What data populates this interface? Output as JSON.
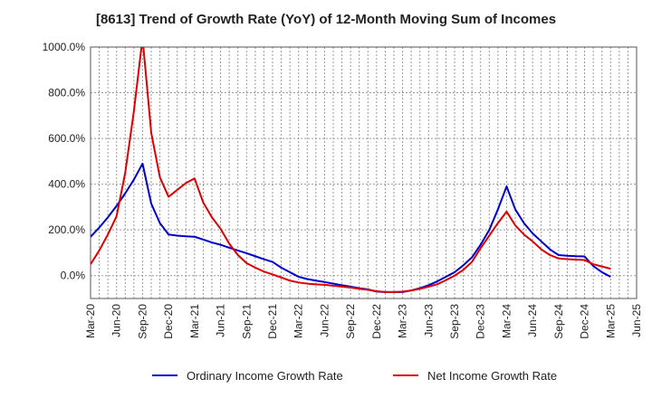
{
  "chart_data": {
    "type": "line",
    "title": "[8613]  Trend of Growth Rate (YoY) of 12-Month Moving Sum of Incomes",
    "xlabel": "",
    "ylabel": "",
    "y_unit": "%",
    "ylim": [
      -100,
      1000
    ],
    "y_ticks": [
      0,
      200,
      400,
      600,
      800,
      1000
    ],
    "y_tick_labels": [
      "0.0%",
      "200.0%",
      "400.0%",
      "600.0%",
      "800.0%",
      "1000.0%"
    ],
    "x_tick_labels": [
      "Mar-20",
      "Jun-20",
      "Sep-20",
      "Dec-20",
      "Mar-21",
      "Jun-21",
      "Sep-21",
      "Dec-21",
      "Mar-22",
      "Jun-22",
      "Sep-22",
      "Dec-22",
      "Mar-23",
      "Jun-23",
      "Sep-23",
      "Dec-23",
      "Mar-24",
      "Jun-24",
      "Sep-24",
      "Dec-24",
      "Mar-25",
      "Jun-25"
    ],
    "grid": true,
    "legend_position": "bottom",
    "x": [
      "Mar-20",
      "Apr-20",
      "May-20",
      "Jun-20",
      "Jul-20",
      "Aug-20",
      "Sep-20",
      "Oct-20",
      "Nov-20",
      "Dec-20",
      "Jan-21",
      "Feb-21",
      "Mar-21",
      "Apr-21",
      "May-21",
      "Jun-21",
      "Jul-21",
      "Aug-21",
      "Sep-21",
      "Oct-21",
      "Nov-21",
      "Dec-21",
      "Jan-22",
      "Feb-22",
      "Mar-22",
      "Apr-22",
      "May-22",
      "Jun-22",
      "Jul-22",
      "Aug-22",
      "Sep-22",
      "Oct-22",
      "Nov-22",
      "Dec-22",
      "Jan-23",
      "Feb-23",
      "Mar-23",
      "Apr-23",
      "May-23",
      "Jun-23",
      "Jul-23",
      "Aug-23",
      "Sep-23",
      "Oct-23",
      "Nov-23",
      "Dec-23",
      "Jan-24",
      "Feb-24",
      "Mar-24",
      "Apr-24",
      "May-24",
      "Jun-24",
      "Jul-24",
      "Aug-24",
      "Sep-24",
      "Oct-24",
      "Nov-24",
      "Dec-24",
      "Jan-25",
      "Feb-25",
      "Mar-25"
    ],
    "series": [
      {
        "name": "Ordinary Income Growth Rate",
        "color": "#0000cc",
        "values": [
          170,
          210,
          255,
          305,
          360,
          420,
          490,
          315,
          230,
          180,
          175,
          172,
          170,
          158,
          145,
          135,
          122,
          110,
          98,
          85,
          72,
          60,
          35,
          15,
          -5,
          -15,
          -22,
          -28,
          -35,
          -42,
          -48,
          -55,
          -60,
          -70,
          -72,
          -72,
          -72,
          -65,
          -55,
          -42,
          -25,
          -5,
          15,
          45,
          80,
          135,
          200,
          290,
          390,
          290,
          230,
          185,
          150,
          115,
          90,
          87,
          85,
          84,
          42,
          15,
          -5
        ]
      },
      {
        "name": "Net Income Growth Rate",
        "color": "#dd0000",
        "values": [
          50,
          110,
          180,
          260,
          450,
          720,
          1040,
          625,
          430,
          345,
          375,
          405,
          425,
          320,
          255,
          205,
          140,
          90,
          55,
          35,
          18,
          5,
          -8,
          -22,
          -30,
          -35,
          -38,
          -40,
          -44,
          -48,
          -52,
          -58,
          -62,
          -68,
          -72,
          -72,
          -70,
          -65,
          -58,
          -48,
          -38,
          -20,
          0,
          25,
          60,
          120,
          175,
          230,
          280,
          220,
          180,
          150,
          115,
          90,
          75,
          72,
          70,
          68,
          50,
          40,
          30
        ]
      }
    ]
  }
}
